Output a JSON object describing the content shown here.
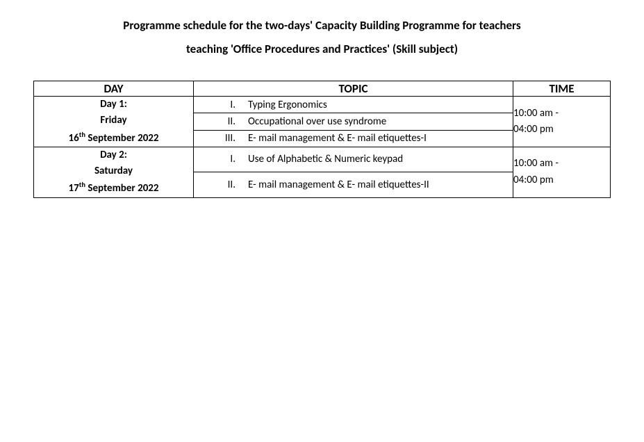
{
  "title_line1": "Programme schedule for the two-days' Capacity Building Programme for teachers",
  "title_line2": "teaching 'Office Procedures and Practices' (Skill subject)",
  "headers": {
    "day": "DAY",
    "topic": "TOPIC",
    "time": "TIME"
  },
  "day1": {
    "label": "Day 1:",
    "weekday": "Friday",
    "date_prefix": "16",
    "date_suffix": "th",
    "date_rest": " September 2022",
    "time_line1": "10:00 am -",
    "time_line2": "04:00 pm",
    "topics": [
      {
        "roman": "I.",
        "text": "Typing Ergonomics"
      },
      {
        "roman": "II.",
        "text": "Occupational over use syndrome"
      },
      {
        "roman": "III.",
        "text": "E- mail management & E- mail etiquettes-I"
      }
    ]
  },
  "day2": {
    "label": "Day 2:",
    "weekday": "Saturday",
    "date_prefix": "17",
    "date_suffix": "th",
    "date_rest": " September 2022",
    "time_line1": "10:00 am -",
    "time_line2": "04:00 pm",
    "topics": [
      {
        "roman": "I.",
        "text": "Use of Alphabetic & Numeric keypad"
      },
      {
        "roman": "II.",
        "text": "E- mail management & E- mail etiquettes-II"
      }
    ]
  }
}
